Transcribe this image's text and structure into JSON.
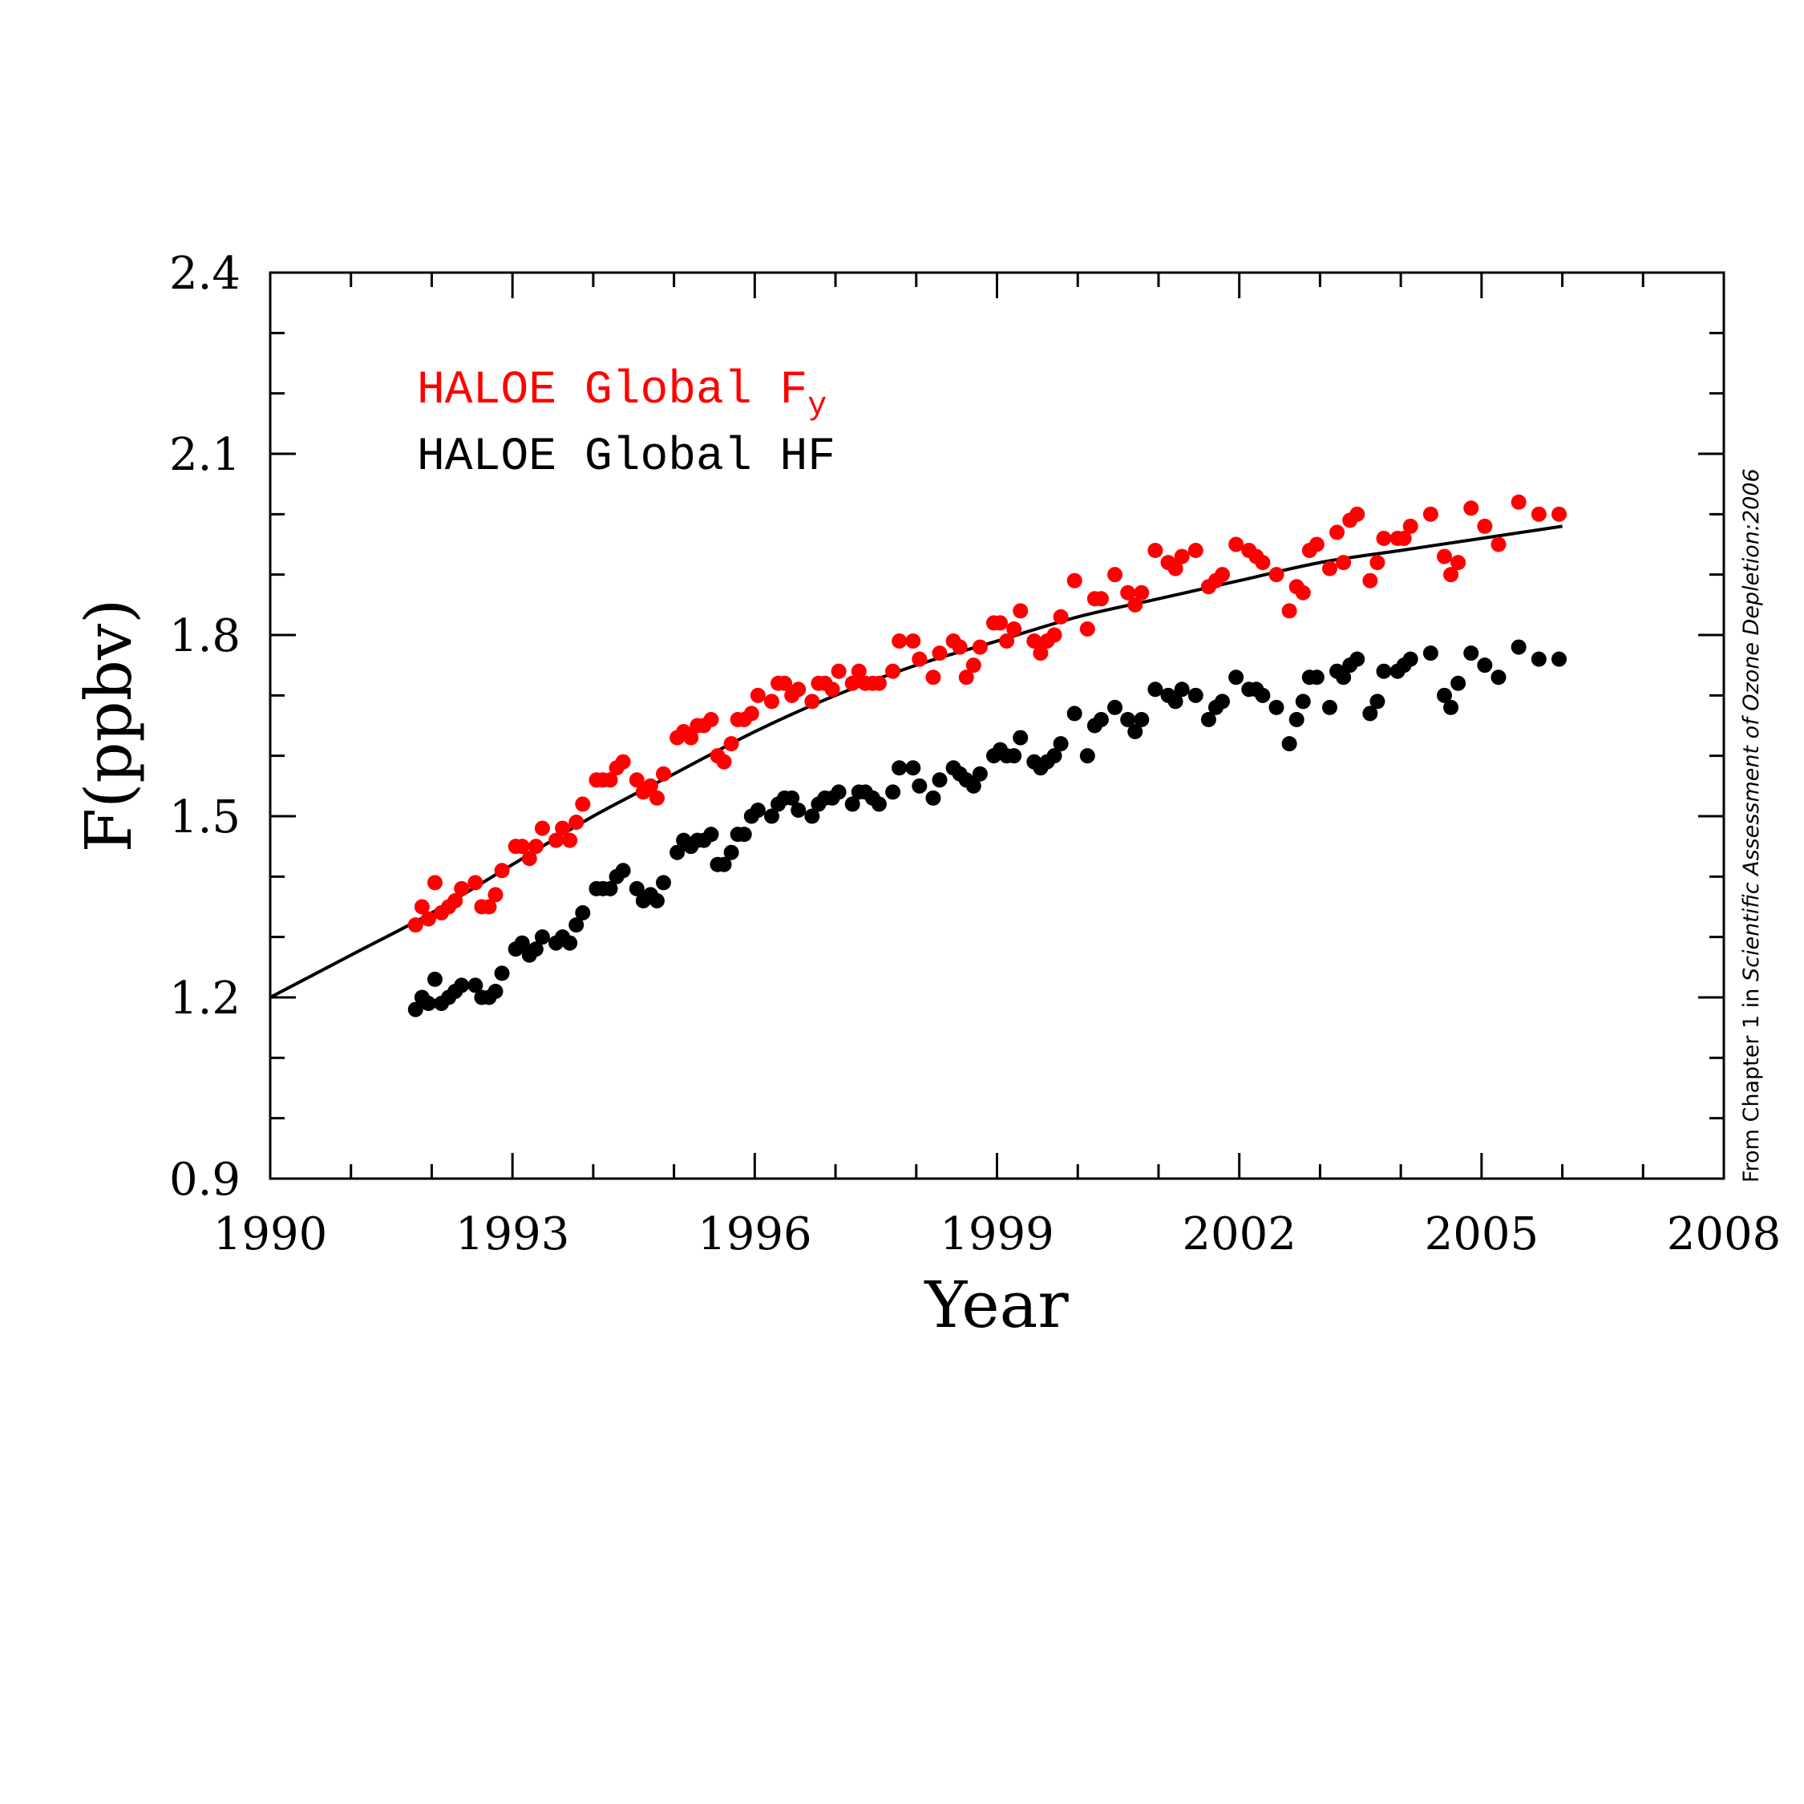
{
  "chart_data": {
    "type": "scatter",
    "xlabel": "Year",
    "ylabel": "F(ppbv)",
    "xlim": [
      1990,
      2008
    ],
    "ylim": [
      0.9,
      2.4
    ],
    "xticks": [
      "1990",
      "1993",
      "1996",
      "1999",
      "2002",
      "2005",
      "2008"
    ],
    "yticks": [
      "0.9",
      "1.2",
      "1.5",
      "1.8",
      "2.1",
      "2.4"
    ],
    "legend_placement": "top-left",
    "grid": false,
    "credit": {
      "prefix": "From Chapter 1 in ",
      "italic": "Scientific Assessment of Ozone Depletion:2006"
    },
    "series": [
      {
        "name": "HALOE Global F",
        "name_subscript": "y",
        "color": "#ff0000",
        "points": [
          [
            1991.8,
            1.32
          ],
          [
            1991.88,
            1.35
          ],
          [
            1991.96,
            1.33
          ],
          [
            1992.04,
            1.39
          ],
          [
            1992.12,
            1.34
          ],
          [
            1992.21,
            1.35
          ],
          [
            1992.29,
            1.36
          ],
          [
            1992.37,
            1.38
          ],
          [
            1992.54,
            1.39
          ],
          [
            1992.62,
            1.35
          ],
          [
            1992.71,
            1.35
          ],
          [
            1992.79,
            1.37
          ],
          [
            1992.87,
            1.41
          ],
          [
            1993.04,
            1.45
          ],
          [
            1993.12,
            1.45
          ],
          [
            1993.21,
            1.43
          ],
          [
            1993.29,
            1.45
          ],
          [
            1993.37,
            1.48
          ],
          [
            1993.54,
            1.46
          ],
          [
            1993.62,
            1.48
          ],
          [
            1993.71,
            1.46
          ],
          [
            1993.79,
            1.49
          ],
          [
            1993.87,
            1.52
          ],
          [
            1994.04,
            1.56
          ],
          [
            1994.12,
            1.56
          ],
          [
            1994.21,
            1.56
          ],
          [
            1994.29,
            1.58
          ],
          [
            1994.37,
            1.59
          ],
          [
            1994.54,
            1.56
          ],
          [
            1994.62,
            1.54
          ],
          [
            1994.71,
            1.55
          ],
          [
            1994.79,
            1.53
          ],
          [
            1994.87,
            1.57
          ],
          [
            1995.04,
            1.63
          ],
          [
            1995.12,
            1.64
          ],
          [
            1995.21,
            1.63
          ],
          [
            1995.29,
            1.65
          ],
          [
            1995.37,
            1.65
          ],
          [
            1995.46,
            1.66
          ],
          [
            1995.54,
            1.6
          ],
          [
            1995.62,
            1.59
          ],
          [
            1995.71,
            1.62
          ],
          [
            1995.79,
            1.66
          ],
          [
            1995.87,
            1.66
          ],
          [
            1995.96,
            1.67
          ],
          [
            1996.04,
            1.7
          ],
          [
            1996.21,
            1.69
          ],
          [
            1996.29,
            1.72
          ],
          [
            1996.37,
            1.72
          ],
          [
            1996.46,
            1.7
          ],
          [
            1996.54,
            1.71
          ],
          [
            1996.71,
            1.69
          ],
          [
            1996.79,
            1.72
          ],
          [
            1996.87,
            1.72
          ],
          [
            1996.96,
            1.71
          ],
          [
            1997.04,
            1.74
          ],
          [
            1997.21,
            1.72
          ],
          [
            1997.29,
            1.74
          ],
          [
            1997.37,
            1.72
          ],
          [
            1997.46,
            1.72
          ],
          [
            1997.54,
            1.72
          ],
          [
            1997.71,
            1.74
          ],
          [
            1997.79,
            1.79
          ],
          [
            1997.96,
            1.79
          ],
          [
            1998.04,
            1.76
          ],
          [
            1998.21,
            1.73
          ],
          [
            1998.29,
            1.77
          ],
          [
            1998.46,
            1.79
          ],
          [
            1998.54,
            1.78
          ],
          [
            1998.62,
            1.73
          ],
          [
            1998.71,
            1.75
          ],
          [
            1998.79,
            1.78
          ],
          [
            1998.96,
            1.82
          ],
          [
            1999.04,
            1.82
          ],
          [
            1999.12,
            1.79
          ],
          [
            1999.21,
            1.81
          ],
          [
            1999.29,
            1.84
          ],
          [
            1999.46,
            1.79
          ],
          [
            1999.54,
            1.77
          ],
          [
            1999.62,
            1.79
          ],
          [
            1999.71,
            1.8
          ],
          [
            1999.79,
            1.83
          ],
          [
            1999.96,
            1.89
          ],
          [
            2000.12,
            1.81
          ],
          [
            2000.21,
            1.86
          ],
          [
            2000.29,
            1.86
          ],
          [
            2000.46,
            1.9
          ],
          [
            2000.62,
            1.87
          ],
          [
            2000.71,
            1.85
          ],
          [
            2000.79,
            1.87
          ],
          [
            2000.96,
            1.94
          ],
          [
            2001.12,
            1.92
          ],
          [
            2001.21,
            1.91
          ],
          [
            2001.29,
            1.93
          ],
          [
            2001.46,
            1.94
          ],
          [
            2001.62,
            1.88
          ],
          [
            2001.71,
            1.89
          ],
          [
            2001.79,
            1.9
          ],
          [
            2001.96,
            1.95
          ],
          [
            2002.12,
            1.94
          ],
          [
            2002.21,
            1.93
          ],
          [
            2002.29,
            1.92
          ],
          [
            2002.46,
            1.9
          ],
          [
            2002.62,
            1.84
          ],
          [
            2002.71,
            1.88
          ],
          [
            2002.79,
            1.87
          ],
          [
            2002.87,
            1.94
          ],
          [
            2002.96,
            1.95
          ],
          [
            2003.12,
            1.91
          ],
          [
            2003.21,
            1.97
          ],
          [
            2003.29,
            1.92
          ],
          [
            2003.37,
            1.99
          ],
          [
            2003.46,
            2.0
          ],
          [
            2003.62,
            1.89
          ],
          [
            2003.71,
            1.92
          ],
          [
            2003.79,
            1.96
          ],
          [
            2003.96,
            1.96
          ],
          [
            2004.04,
            1.96
          ],
          [
            2004.12,
            1.98
          ],
          [
            2004.37,
            2.0
          ],
          [
            2004.54,
            1.93
          ],
          [
            2004.62,
            1.9
          ],
          [
            2004.71,
            1.92
          ],
          [
            2004.87,
            2.01
          ],
          [
            2005.04,
            1.98
          ],
          [
            2005.21,
            1.95
          ],
          [
            2005.46,
            2.02
          ],
          [
            2005.71,
            2.0
          ],
          [
            2005.96,
            2.0
          ]
        ]
      },
      {
        "name": "HALOE Global HF",
        "color": "#000000",
        "points": [
          [
            1991.8,
            1.18
          ],
          [
            1991.88,
            1.2
          ],
          [
            1991.96,
            1.19
          ],
          [
            1992.04,
            1.23
          ],
          [
            1992.12,
            1.19
          ],
          [
            1992.21,
            1.2
          ],
          [
            1992.29,
            1.21
          ],
          [
            1992.37,
            1.22
          ],
          [
            1992.54,
            1.22
          ],
          [
            1992.62,
            1.2
          ],
          [
            1992.71,
            1.2
          ],
          [
            1992.79,
            1.21
          ],
          [
            1992.87,
            1.24
          ],
          [
            1993.04,
            1.28
          ],
          [
            1993.12,
            1.29
          ],
          [
            1993.21,
            1.27
          ],
          [
            1993.29,
            1.28
          ],
          [
            1993.37,
            1.3
          ],
          [
            1993.54,
            1.29
          ],
          [
            1993.62,
            1.3
          ],
          [
            1993.71,
            1.29
          ],
          [
            1993.79,
            1.32
          ],
          [
            1993.87,
            1.34
          ],
          [
            1994.04,
            1.38
          ],
          [
            1994.12,
            1.38
          ],
          [
            1994.21,
            1.38
          ],
          [
            1994.29,
            1.4
          ],
          [
            1994.37,
            1.41
          ],
          [
            1994.54,
            1.38
          ],
          [
            1994.62,
            1.36
          ],
          [
            1994.71,
            1.37
          ],
          [
            1994.79,
            1.36
          ],
          [
            1994.87,
            1.39
          ],
          [
            1995.04,
            1.44
          ],
          [
            1995.12,
            1.46
          ],
          [
            1995.21,
            1.45
          ],
          [
            1995.29,
            1.46
          ],
          [
            1995.37,
            1.46
          ],
          [
            1995.46,
            1.47
          ],
          [
            1995.54,
            1.42
          ],
          [
            1995.62,
            1.42
          ],
          [
            1995.71,
            1.44
          ],
          [
            1995.79,
            1.47
          ],
          [
            1995.87,
            1.47
          ],
          [
            1995.96,
            1.5
          ],
          [
            1996.04,
            1.51
          ],
          [
            1996.21,
            1.5
          ],
          [
            1996.29,
            1.52
          ],
          [
            1996.37,
            1.53
          ],
          [
            1996.46,
            1.53
          ],
          [
            1996.54,
            1.51
          ],
          [
            1996.71,
            1.5
          ],
          [
            1996.79,
            1.52
          ],
          [
            1996.87,
            1.53
          ],
          [
            1996.96,
            1.53
          ],
          [
            1997.04,
            1.54
          ],
          [
            1997.21,
            1.52
          ],
          [
            1997.29,
            1.54
          ],
          [
            1997.37,
            1.54
          ],
          [
            1997.46,
            1.53
          ],
          [
            1997.54,
            1.52
          ],
          [
            1997.71,
            1.54
          ],
          [
            1997.79,
            1.58
          ],
          [
            1997.96,
            1.58
          ],
          [
            1998.04,
            1.55
          ],
          [
            1998.21,
            1.53
          ],
          [
            1998.29,
            1.56
          ],
          [
            1998.46,
            1.58
          ],
          [
            1998.54,
            1.57
          ],
          [
            1998.62,
            1.56
          ],
          [
            1998.71,
            1.55
          ],
          [
            1998.79,
            1.57
          ],
          [
            1998.96,
            1.6
          ],
          [
            1999.04,
            1.61
          ],
          [
            1999.12,
            1.6
          ],
          [
            1999.21,
            1.6
          ],
          [
            1999.29,
            1.63
          ],
          [
            1999.46,
            1.59
          ],
          [
            1999.54,
            1.58
          ],
          [
            1999.62,
            1.59
          ],
          [
            1999.71,
            1.6
          ],
          [
            1999.79,
            1.62
          ],
          [
            1999.96,
            1.67
          ],
          [
            2000.12,
            1.6
          ],
          [
            2000.21,
            1.65
          ],
          [
            2000.29,
            1.66
          ],
          [
            2000.46,
            1.68
          ],
          [
            2000.62,
            1.66
          ],
          [
            2000.71,
            1.64
          ],
          [
            2000.79,
            1.66
          ],
          [
            2000.96,
            1.71
          ],
          [
            2001.12,
            1.7
          ],
          [
            2001.21,
            1.69
          ],
          [
            2001.29,
            1.71
          ],
          [
            2001.46,
            1.7
          ],
          [
            2001.62,
            1.66
          ],
          [
            2001.71,
            1.68
          ],
          [
            2001.79,
            1.69
          ],
          [
            2001.96,
            1.73
          ],
          [
            2002.12,
            1.71
          ],
          [
            2002.21,
            1.71
          ],
          [
            2002.29,
            1.7
          ],
          [
            2002.46,
            1.68
          ],
          [
            2002.62,
            1.62
          ],
          [
            2002.71,
            1.66
          ],
          [
            2002.79,
            1.69
          ],
          [
            2002.87,
            1.73
          ],
          [
            2002.96,
            1.73
          ],
          [
            2003.12,
            1.68
          ],
          [
            2003.21,
            1.74
          ],
          [
            2003.29,
            1.73
          ],
          [
            2003.37,
            1.75
          ],
          [
            2003.46,
            1.76
          ],
          [
            2003.62,
            1.67
          ],
          [
            2003.71,
            1.69
          ],
          [
            2003.79,
            1.74
          ],
          [
            2003.96,
            1.74
          ],
          [
            2004.04,
            1.75
          ],
          [
            2004.12,
            1.76
          ],
          [
            2004.37,
            1.77
          ],
          [
            2004.54,
            1.7
          ],
          [
            2004.62,
            1.68
          ],
          [
            2004.71,
            1.72
          ],
          [
            2004.87,
            1.77
          ],
          [
            2005.04,
            1.75
          ],
          [
            2005.21,
            1.73
          ],
          [
            2005.46,
            1.78
          ],
          [
            2005.71,
            1.76
          ],
          [
            2005.96,
            1.76
          ]
        ]
      }
    ],
    "fit_curve": {
      "color": "#000000",
      "points": [
        [
          1990.0,
          1.2
        ],
        [
          1991.0,
          1.27
        ],
        [
          1992.0,
          1.34
        ],
        [
          1993.0,
          1.42
        ],
        [
          1994.0,
          1.5
        ],
        [
          1995.0,
          1.57
        ],
        [
          1996.0,
          1.64
        ],
        [
          1997.0,
          1.7
        ],
        [
          1998.0,
          1.75
        ],
        [
          1999.0,
          1.79
        ],
        [
          2000.0,
          1.83
        ],
        [
          2001.0,
          1.86
        ],
        [
          2002.0,
          1.89
        ],
        [
          2003.0,
          1.92
        ],
        [
          2004.0,
          1.94
        ],
        [
          2005.0,
          1.96
        ],
        [
          2006.0,
          1.98
        ]
      ]
    }
  }
}
